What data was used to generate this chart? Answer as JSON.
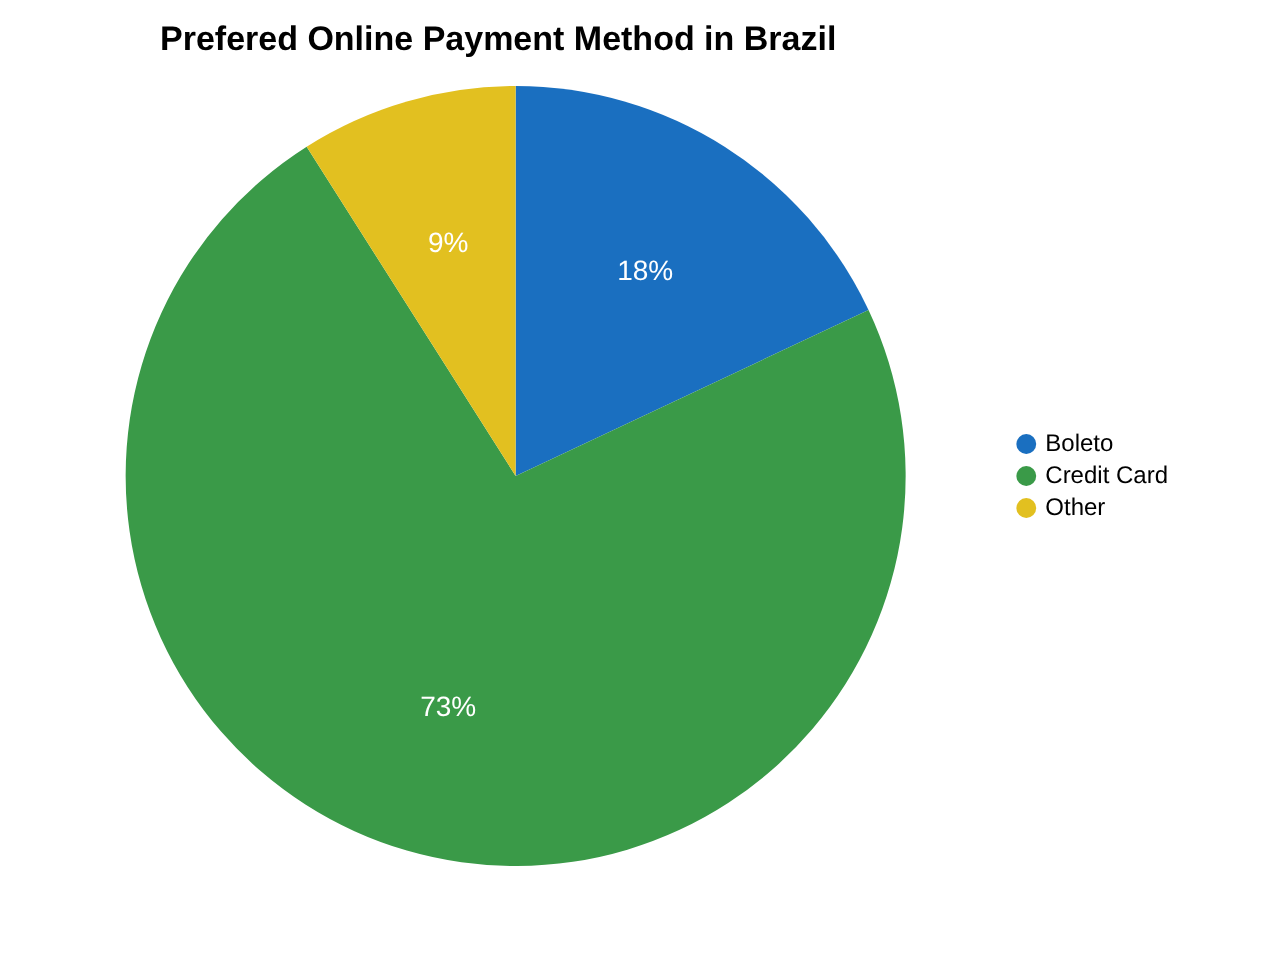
{
  "chart_data": {
    "type": "pie",
    "title": "Prefered Online Payment Method in Brazil",
    "categories": [
      "Boleto",
      "Credit Card",
      "Other"
    ],
    "values": [
      18,
      73,
      9
    ],
    "value_labels": [
      "18%",
      "73%",
      "9%"
    ],
    "colors": [
      "#1a6fc0",
      "#3a9a48",
      "#e2c020"
    ],
    "legend": "right"
  }
}
